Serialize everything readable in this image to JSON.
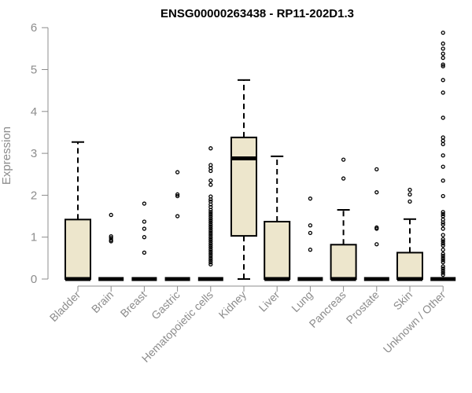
{
  "chart_data": {
    "type": "box",
    "title": "ENSG00000263438 - RP11-202D1.3",
    "xlabel": "",
    "ylabel": "Expression",
    "ylim": [
      0,
      6
    ],
    "yticks": [
      0,
      1,
      2,
      3,
      4,
      5,
      6
    ],
    "grid": false,
    "box_fill": "#ede6cc",
    "categories": [
      "Bladder",
      "Brain",
      "Breast",
      "Gastric",
      "Hematopoietic cells",
      "Kidney",
      "Liver",
      "Lung",
      "Pancreas",
      "Prostate",
      "Skin",
      "Unknown / Other"
    ],
    "boxes": [
      {
        "category": "Bladder",
        "q1": 0,
        "median": 0,
        "q3": 1.42,
        "whisker_low": 0,
        "whisker_high": 3.27,
        "outliers": []
      },
      {
        "category": "Brain",
        "q1": 0,
        "median": 0,
        "q3": 0,
        "whisker_low": 0,
        "whisker_high": 0,
        "outliers": [
          1.53,
          1.02,
          0.98,
          0.93,
          0.9
        ]
      },
      {
        "category": "Breast",
        "q1": 0,
        "median": 0,
        "q3": 0,
        "whisker_low": 0,
        "whisker_high": 0,
        "outliers": [
          1.8,
          1.37,
          1.2,
          1.0,
          0.63
        ]
      },
      {
        "category": "Gastric",
        "q1": 0,
        "median": 0,
        "q3": 0,
        "whisker_low": 0,
        "whisker_high": 0,
        "outliers": [
          2.55,
          2.02,
          1.98,
          1.5
        ]
      },
      {
        "category": "Hematopoietic cells",
        "q1": 0,
        "median": 0,
        "q3": 0,
        "whisker_low": 0,
        "whisker_high": 0,
        "outliers": [
          3.12,
          2.72,
          2.65,
          2.58,
          2.35,
          2.25,
          1.97,
          1.9,
          1.85,
          1.78,
          1.72,
          1.65,
          1.6,
          1.55,
          1.5,
          1.45,
          1.4,
          1.35,
          1.3,
          1.25,
          1.2,
          1.15,
          1.1,
          1.05,
          1.0,
          0.95,
          0.9,
          0.85,
          0.8,
          0.75,
          0.7,
          0.65,
          0.6,
          0.55,
          0.5,
          0.45,
          0.4,
          0.35
        ]
      },
      {
        "category": "Kidney",
        "q1": 1.03,
        "median": 2.88,
        "q3": 3.38,
        "whisker_low": 0,
        "whisker_high": 4.75,
        "outliers": []
      },
      {
        "category": "Liver",
        "q1": 0,
        "median": 0,
        "q3": 1.37,
        "whisker_low": 0,
        "whisker_high": 2.93,
        "outliers": []
      },
      {
        "category": "Lung",
        "q1": 0,
        "median": 0,
        "q3": 0,
        "whisker_low": 0,
        "whisker_high": 0,
        "outliers": [
          1.92,
          1.28,
          1.1,
          0.7
        ]
      },
      {
        "category": "Pancreas",
        "q1": 0,
        "median": 0,
        "q3": 0.82,
        "whisker_low": 0,
        "whisker_high": 1.65,
        "outliers": [
          2.85,
          2.4
        ]
      },
      {
        "category": "Prostate",
        "q1": 0,
        "median": 0,
        "q3": 0,
        "whisker_low": 0,
        "whisker_high": 0,
        "outliers": [
          2.62,
          2.07,
          1.23,
          1.2,
          0.83
        ]
      },
      {
        "category": "Skin",
        "q1": 0,
        "median": 0,
        "q3": 0.63,
        "whisker_low": 0,
        "whisker_high": 1.43,
        "outliers": [
          2.13,
          2.02,
          1.85
        ]
      },
      {
        "category": "Unknown / Other",
        "q1": 0,
        "median": 0,
        "q3": 0,
        "whisker_low": 0,
        "whisker_high": 0,
        "outliers": [
          5.88,
          5.62,
          5.5,
          5.38,
          5.28,
          5.12,
          5.08,
          4.75,
          4.45,
          3.85,
          3.38,
          3.3,
          3.22,
          2.95,
          2.68,
          2.35,
          1.98,
          1.6,
          1.55,
          1.5,
          1.42,
          1.35,
          1.3,
          1.2,
          1.05,
          0.95,
          0.9,
          0.85,
          0.8,
          0.7,
          0.6,
          0.55,
          0.5,
          0.45,
          0.4,
          0.3,
          0.25,
          0.2,
          0.15,
          0.1
        ]
      }
    ]
  }
}
